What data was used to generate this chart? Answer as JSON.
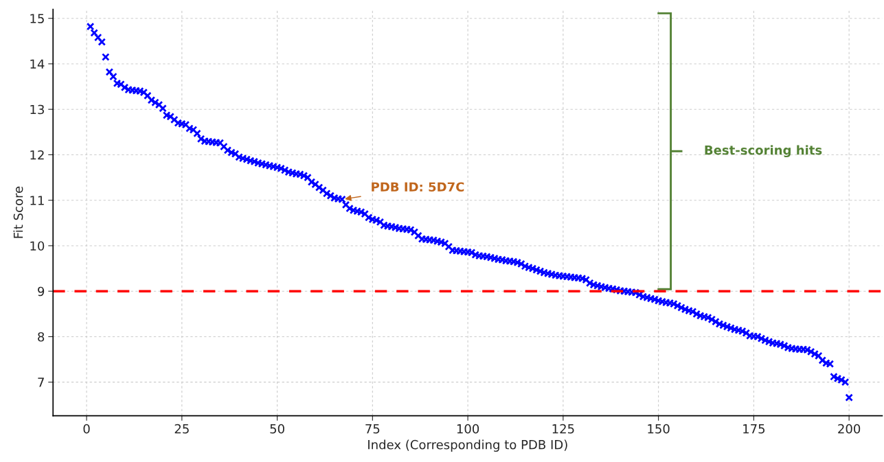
{
  "chart_data": {
    "type": "scatter",
    "xlabel": "Index (Corresponding to PDB ID)",
    "ylabel": "Fit Score",
    "x": [
      1,
      2,
      3,
      4,
      5,
      6,
      7,
      8,
      9,
      10,
      11,
      12,
      13,
      14,
      15,
      16,
      17,
      18,
      19,
      20,
      21,
      22,
      23,
      24,
      25,
      26,
      27,
      28,
      29,
      30,
      31,
      32,
      33,
      34,
      35,
      36,
      37,
      38,
      39,
      40,
      41,
      42,
      43,
      44,
      45,
      46,
      47,
      48,
      49,
      50,
      51,
      52,
      53,
      54,
      55,
      56,
      57,
      58,
      59,
      60,
      61,
      62,
      63,
      64,
      65,
      66,
      67,
      68,
      69,
      70,
      71,
      72,
      73,
      74,
      75,
      76,
      77,
      78,
      79,
      80,
      81,
      82,
      83,
      84,
      85,
      86,
      87,
      88,
      89,
      90,
      91,
      92,
      93,
      94,
      95,
      96,
      97,
      98,
      99,
      100,
      101,
      102,
      103,
      104,
      105,
      106,
      107,
      108,
      109,
      110,
      111,
      112,
      113,
      114,
      115,
      116,
      117,
      118,
      119,
      120,
      121,
      122,
      123,
      124,
      125,
      126,
      127,
      128,
      129,
      130,
      131,
      132,
      133,
      134,
      135,
      136,
      137,
      138,
      139,
      140,
      141,
      142,
      143,
      144,
      145,
      146,
      147,
      148,
      149,
      150,
      151,
      152,
      153,
      154,
      155,
      156,
      157,
      158,
      159,
      160,
      161,
      162,
      163,
      164,
      165,
      166,
      167,
      168,
      169,
      170,
      171,
      172,
      173,
      174,
      175,
      176,
      177,
      178,
      179,
      180,
      181,
      182,
      183,
      184,
      185,
      186,
      187,
      188,
      189,
      190,
      191,
      192,
      193,
      194,
      195,
      196,
      197,
      198,
      199,
      200
    ],
    "series": [
      {
        "color": "#0000ff",
        "values": [
          14.82,
          14.68,
          14.58,
          14.48,
          14.15,
          13.82,
          13.72,
          13.57,
          13.55,
          13.48,
          13.43,
          13.42,
          13.41,
          13.4,
          13.37,
          13.3,
          13.2,
          13.15,
          13.1,
          13.02,
          12.87,
          12.84,
          12.77,
          12.7,
          12.68,
          12.66,
          12.58,
          12.55,
          12.47,
          12.35,
          12.3,
          12.29,
          12.28,
          12.27,
          12.26,
          12.18,
          12.1,
          12.05,
          12.02,
          11.95,
          11.92,
          11.9,
          11.87,
          11.85,
          11.82,
          11.8,
          11.78,
          11.76,
          11.74,
          11.72,
          11.7,
          11.66,
          11.62,
          11.6,
          11.58,
          11.57,
          11.54,
          11.5,
          11.4,
          11.35,
          11.28,
          11.22,
          11.15,
          11.1,
          11.05,
          11.03,
          11.02,
          10.9,
          10.82,
          10.78,
          10.76,
          10.74,
          10.7,
          10.62,
          10.58,
          10.56,
          10.52,
          10.45,
          10.43,
          10.42,
          10.4,
          10.38,
          10.37,
          10.36,
          10.35,
          10.3,
          10.22,
          10.15,
          10.14,
          10.13,
          10.12,
          10.1,
          10.08,
          10.05,
          9.98,
          9.9,
          9.89,
          9.88,
          9.87,
          9.86,
          9.85,
          9.8,
          9.78,
          9.77,
          9.76,
          9.74,
          9.72,
          9.7,
          9.69,
          9.67,
          9.66,
          9.65,
          9.63,
          9.6,
          9.55,
          9.52,
          9.5,
          9.47,
          9.44,
          9.41,
          9.39,
          9.37,
          9.35,
          9.34,
          9.33,
          9.32,
          9.31,
          9.3,
          9.29,
          9.28,
          9.25,
          9.18,
          9.14,
          9.12,
          9.1,
          9.08,
          9.06,
          9.05,
          9.03,
          9.01,
          9.0,
          8.99,
          8.98,
          8.97,
          8.92,
          8.88,
          8.86,
          8.84,
          8.82,
          8.79,
          8.77,
          8.75,
          8.74,
          8.72,
          8.68,
          8.64,
          8.6,
          8.57,
          8.55,
          8.5,
          8.46,
          8.44,
          8.42,
          8.38,
          8.33,
          8.28,
          8.25,
          8.22,
          8.19,
          8.16,
          8.14,
          8.12,
          8.08,
          8.02,
          8.01,
          8.0,
          7.96,
          7.92,
          7.89,
          7.86,
          7.85,
          7.83,
          7.8,
          7.76,
          7.74,
          7.73,
          7.72,
          7.72,
          7.71,
          7.67,
          7.62,
          7.58,
          7.48,
          7.42,
          7.4,
          7.12,
          7.08,
          7.05,
          7.0,
          6.66
        ]
      }
    ],
    "marker": "cross",
    "xlim": [
      -8.8,
      208.7
    ],
    "ylim": [
      6.26,
      15.2
    ],
    "xticks": [
      0,
      25,
      50,
      75,
      100,
      125,
      150,
      175,
      200
    ],
    "yticks": [
      7,
      8,
      9,
      10,
      11,
      12,
      13,
      14,
      15
    ],
    "grid": true,
    "ref_lines": [
      {
        "axis": "y",
        "value": 9,
        "color": "#ff0000",
        "line_style": "dashed"
      }
    ],
    "annotations": [
      {
        "text": "PDB ID: 5D7C",
        "x": 67,
        "y": 11.02
      },
      "Best-scoring hits"
    ]
  }
}
